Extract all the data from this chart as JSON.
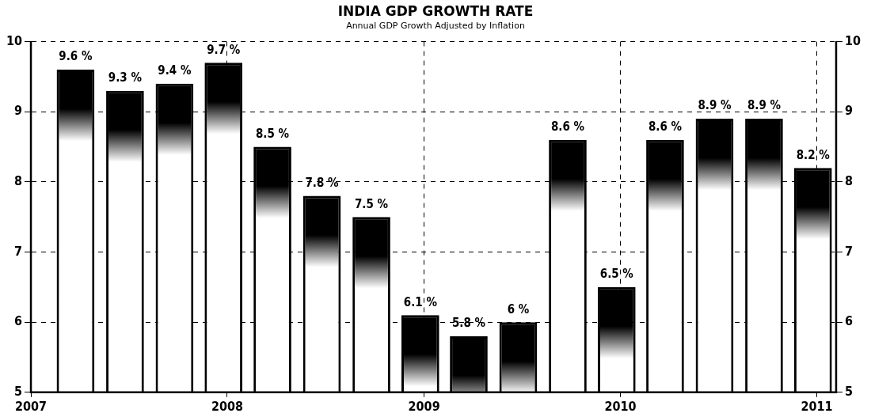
{
  "chart_data": {
    "type": "bar",
    "title": "INDIA GDP GROWTH RATE",
    "subtitle": "Annual GDP Growth Adjusted by Inflation",
    "x": [
      "2007-03-25",
      "2007-06-25",
      "2007-09-25",
      "2007-12-25",
      "2008-03-25",
      "2008-06-25",
      "2008-09-25",
      "2008-12-25",
      "2009-03-25",
      "2009-06-25",
      "2009-09-25",
      "2009-12-25",
      "2010-03-25",
      "2010-06-25",
      "2010-09-25",
      "2010-12-25"
    ],
    "values": [
      9.6,
      9.3,
      9.4,
      9.7,
      8.5,
      7.8,
      7.5,
      6.1,
      5.8,
      6,
      8.6,
      6.5,
      8.6,
      8.9,
      8.9,
      8.2
    ],
    "value_labels": [
      "9.6 %",
      "9.3 %",
      "9.4 %",
      "9.7 %",
      "8.5 %",
      "7.8 %",
      "7.5 %",
      "6.1 %",
      "5.8 %",
      "6 %",
      "8.6 %",
      "6.5 %",
      "8.6 %",
      "8.9 %",
      "8.9 %",
      "8.2 %"
    ],
    "color": "#000000",
    "xlim": [
      "2007-01-01",
      "2011-02-06"
    ],
    "xticks": [
      "2007",
      "2008",
      "2009",
      "2010",
      "2011"
    ],
    "ylim": [
      5,
      10
    ],
    "yticks": [
      5,
      6,
      7,
      8,
      9,
      10
    ],
    "y2lim": [
      5,
      10
    ],
    "y2ticks": [
      5,
      6,
      7,
      8,
      9,
      10
    ],
    "grid": true,
    "line_style": "dashed",
    "legend": false
  }
}
